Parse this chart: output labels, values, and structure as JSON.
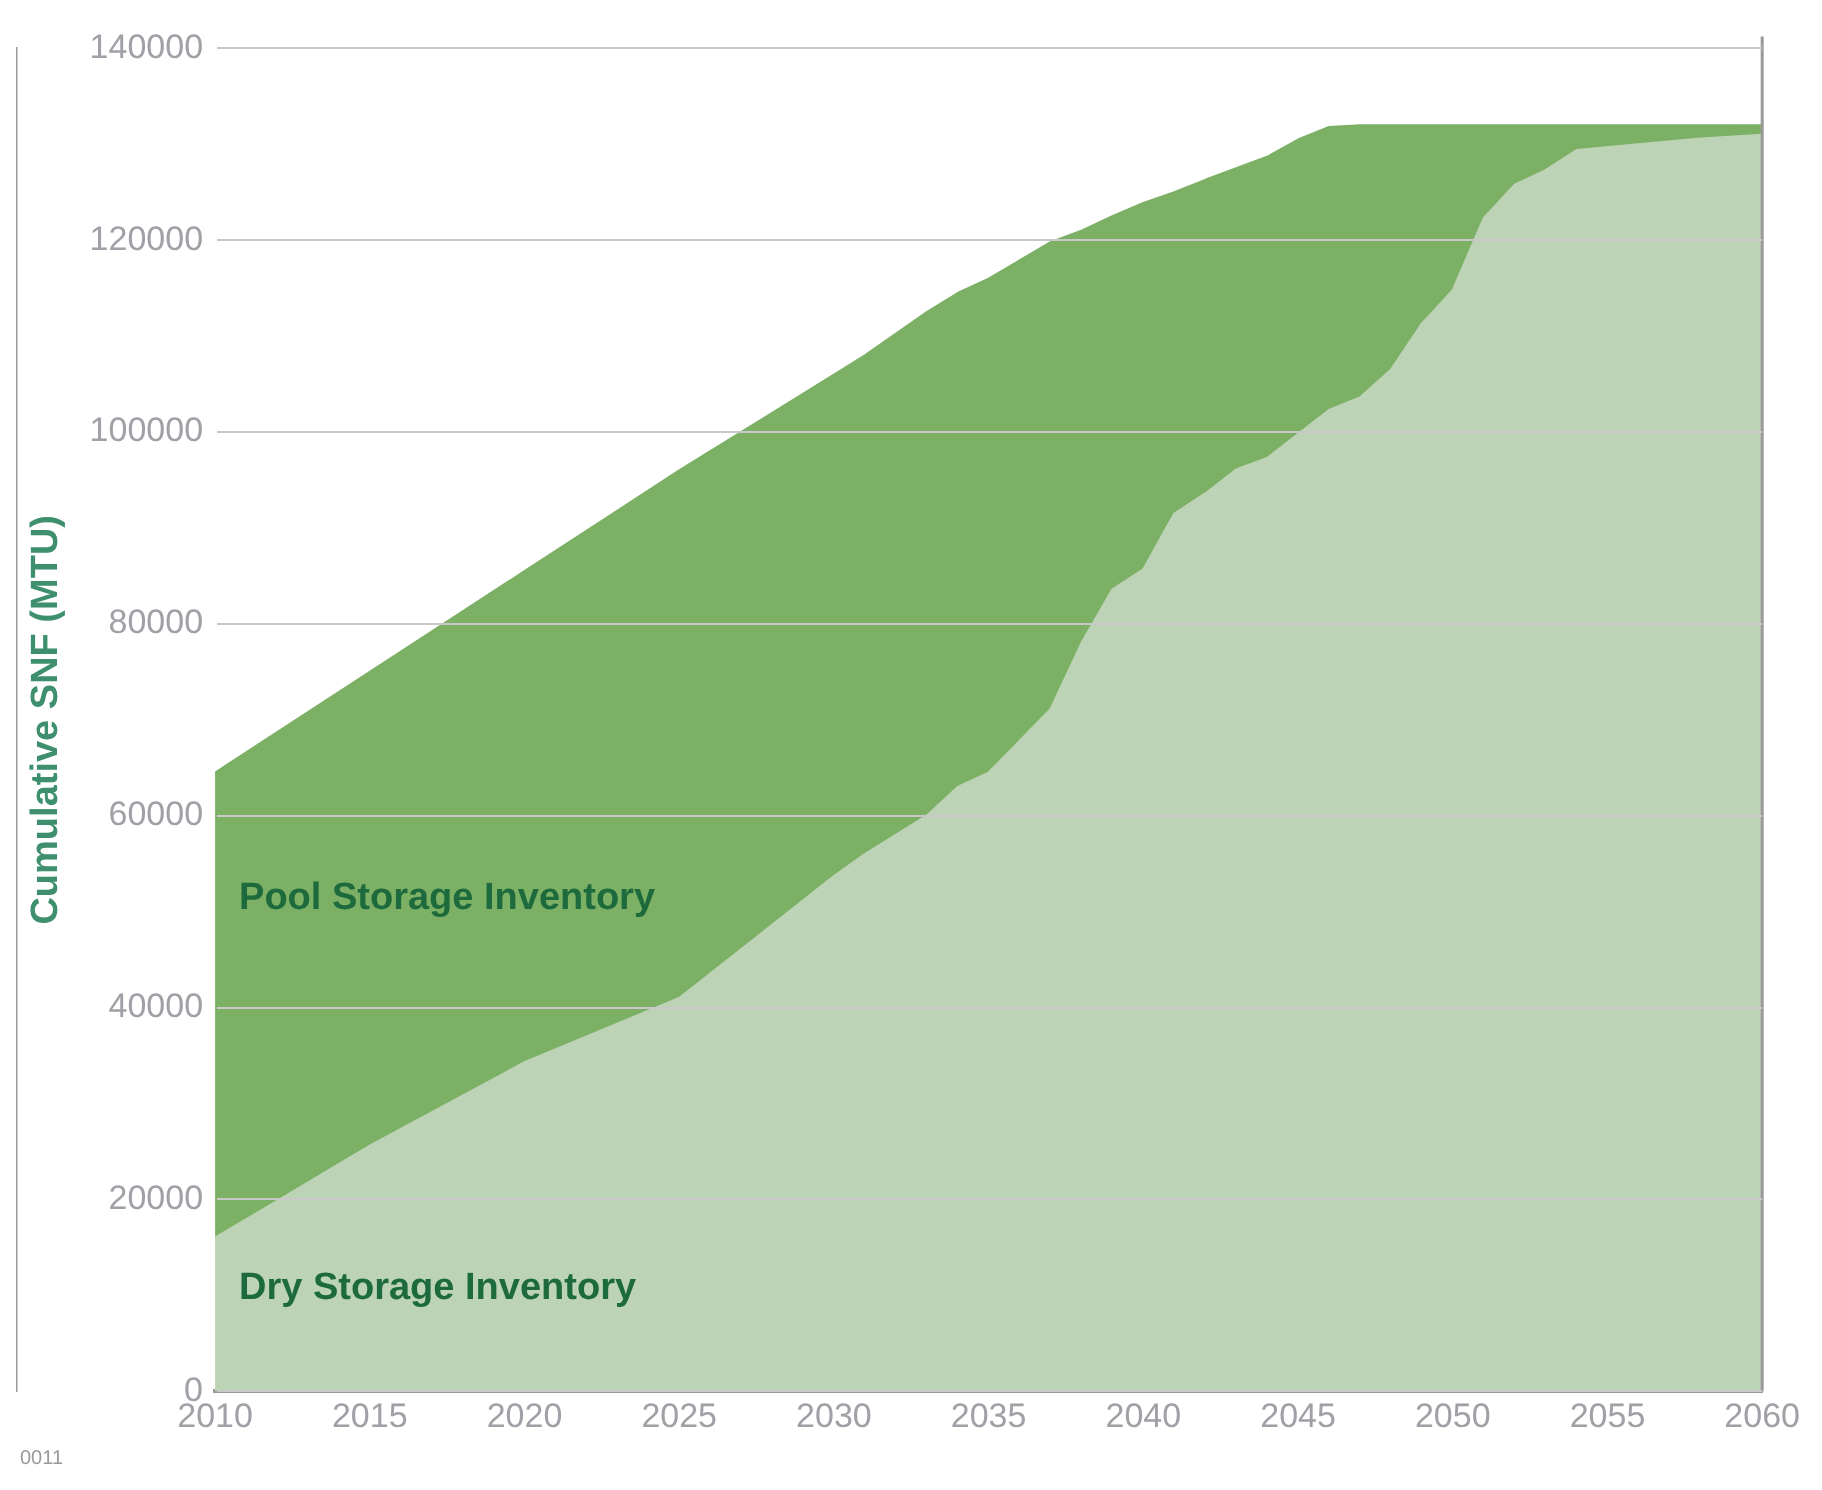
{
  "chart_data": {
    "type": "area",
    "ylabel": "Cumulative SNF (MTU)",
    "x": [
      2010,
      2015,
      2020,
      2025,
      2030,
      2031,
      2033,
      2034,
      2035,
      2037,
      2038,
      2039,
      2040,
      2041,
      2042,
      2043,
      2044,
      2045,
      2046,
      2047,
      2048,
      2049,
      2050,
      2051,
      2052,
      2053,
      2054,
      2058,
      2060
    ],
    "xlim": [
      2010,
      2060
    ],
    "xticks": [
      2010,
      2015,
      2020,
      2025,
      2030,
      2035,
      2040,
      2045,
      2050,
      2055,
      2060
    ],
    "ylim": [
      0,
      140000
    ],
    "yticks": [
      0,
      20000,
      40000,
      60000,
      80000,
      100000,
      120000,
      140000
    ],
    "stacked": true,
    "grid": "y",
    "legend": false,
    "marker": "none",
    "series": [
      {
        "name": "Dry Storage Inventory",
        "color": "#bdd3b6",
        "values": [
          16000,
          25600,
          34300,
          41000,
          53700,
          56000,
          60000,
          63000,
          64500,
          71100,
          78000,
          83600,
          85700,
          91500,
          93600,
          96100,
          97300,
          99800,
          102300,
          103600,
          106500,
          111300,
          114800,
          122300,
          125800,
          127300,
          129400,
          130600,
          131000
        ]
      },
      {
        "name": "Pool Storage Inventory",
        "color": "#7cb065",
        "values": [
          48500,
          49400,
          51200,
          55000,
          52300,
          52000,
          52500,
          51500,
          51500,
          48700,
          43000,
          38900,
          38200,
          33500,
          32700,
          31400,
          31400,
          30700,
          29500,
          28400,
          25500,
          20700,
          17200,
          9700,
          6200,
          4700,
          2600,
          1400,
          1000
        ]
      }
    ],
    "annotations": [
      "0011"
    ]
  }
}
